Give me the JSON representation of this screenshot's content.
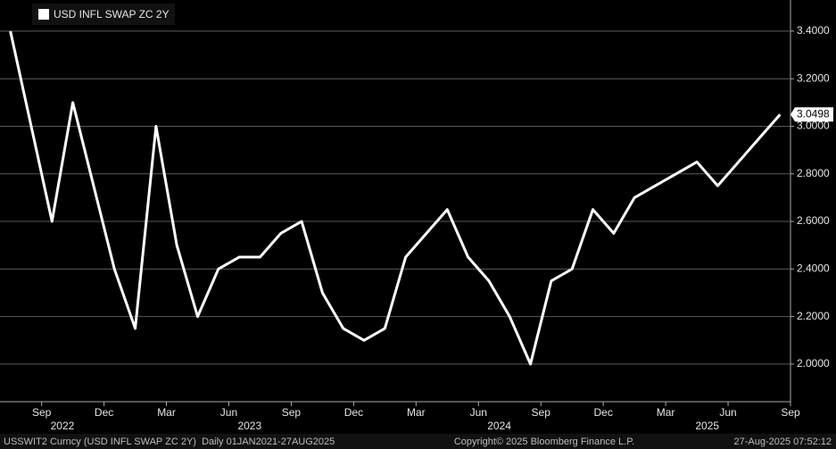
{
  "chart_data": {
    "type": "line",
    "legend_label": "USD INFL SWAP ZC 2Y",
    "x": [
      "2022-07",
      "2022-08",
      "2022-09",
      "2022-10",
      "2022-11",
      "2022-12",
      "2023-01",
      "2023-02",
      "2023-03",
      "2023-04",
      "2023-05",
      "2023-06",
      "2023-07",
      "2023-08",
      "2023-09",
      "2023-10",
      "2023-11",
      "2023-12",
      "2024-01",
      "2024-02",
      "2024-03",
      "2024-04",
      "2024-05",
      "2024-06",
      "2024-07",
      "2024-08",
      "2024-09",
      "2024-10",
      "2024-11",
      "2024-12",
      "2025-01",
      "2025-02",
      "2025-03",
      "2025-04",
      "2025-05",
      "2025-06",
      "2025-07",
      "2025-08"
    ],
    "series": [
      {
        "name": "USD INFL SWAP ZC 2Y",
        "color": "#ffffff",
        "values": [
          3.4,
          3.0,
          2.6,
          3.1,
          2.75,
          2.4,
          2.15,
          3.0,
          2.5,
          2.2,
          2.4,
          2.45,
          2.45,
          2.55,
          2.6,
          2.3,
          2.15,
          2.1,
          2.15,
          2.45,
          2.55,
          2.65,
          2.45,
          2.35,
          2.2,
          2.0,
          2.35,
          2.4,
          2.65,
          2.55,
          2.7,
          2.75,
          2.8,
          2.85,
          2.75,
          2.85,
          2.95,
          3.0498
        ]
      }
    ],
    "xlim": [
      "2022-07",
      "2025-09"
    ],
    "xticks": [
      {
        "value": "2022-09",
        "label": "Sep"
      },
      {
        "value": "2022-12",
        "label": "Dec"
      },
      {
        "value": "2023-03",
        "label": "Mar"
      },
      {
        "value": "2023-06",
        "label": "Jun"
      },
      {
        "value": "2023-09",
        "label": "Sep"
      },
      {
        "value": "2023-12",
        "label": "Dec"
      },
      {
        "value": "2024-03",
        "label": "Mar"
      },
      {
        "value": "2024-06",
        "label": "Jun"
      },
      {
        "value": "2024-09",
        "label": "Sep"
      },
      {
        "value": "2024-12",
        "label": "Dec"
      },
      {
        "value": "2025-03",
        "label": "Mar"
      },
      {
        "value": "2025-06",
        "label": "Jun"
      },
      {
        "value": "2025-09",
        "label": "Sep"
      }
    ],
    "years": [
      2022,
      2023,
      2024,
      2025
    ],
    "ylim": [
      1.842,
      3.531
    ],
    "yticks": [
      {
        "value": 2.0,
        "label": "2.0000"
      },
      {
        "value": 2.2,
        "label": "2.2000"
      },
      {
        "value": 2.4,
        "label": "2.4000"
      },
      {
        "value": 2.6,
        "label": "2.6000"
      },
      {
        "value": 2.8,
        "label": "2.8000"
      },
      {
        "value": 3.0,
        "label": "3.0000"
      },
      {
        "value": 3.2,
        "label": "3.2000"
      },
      {
        "value": 3.4,
        "label": "3.4000"
      }
    ],
    "grid": true,
    "footer_left": "USSWIT2 Curncy (USD INFL SWAP ZC 2Y)  Daily 01JAN2021-27AUG2025",
    "footer_center": "Copyright© 2025 Bloomberg Finance L.P.",
    "footer_right": "27-Aug-2025 07:52:12"
  }
}
